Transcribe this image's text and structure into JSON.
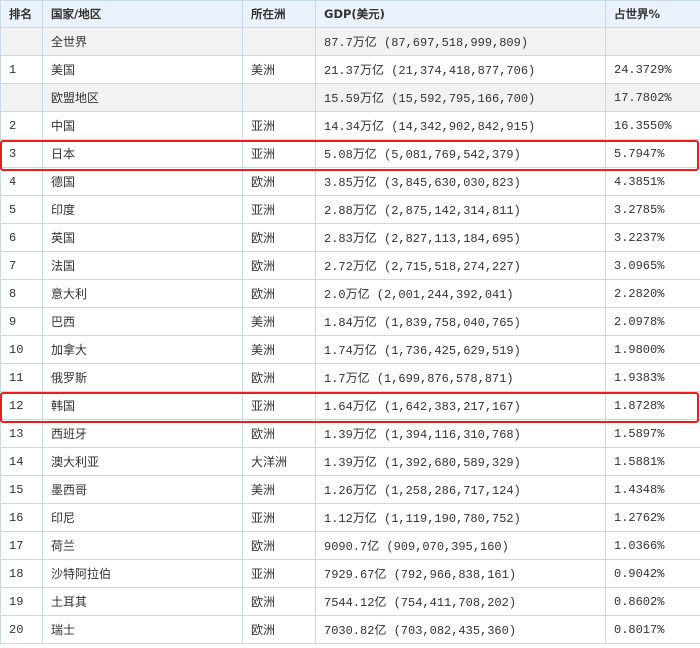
{
  "headers": [
    "排名",
    "国家/地区",
    "所在洲",
    "GDP(美元)",
    "占世界%"
  ],
  "rows": [
    {
      "rank": "",
      "country": "全世界",
      "continent": "",
      "gdp": "87.7万亿 (87,697,518,999,809)",
      "share": "",
      "gray": true
    },
    {
      "rank": "1",
      "country": "美国",
      "continent": "美洲",
      "gdp": "21.37万亿 (21,374,418,877,706)",
      "share": "24.3729%"
    },
    {
      "rank": "",
      "country": "欧盟地区",
      "continent": "",
      "gdp": "15.59万亿 (15,592,795,166,700)",
      "share": "17.7802%",
      "gray": true
    },
    {
      "rank": "2",
      "country": "中国",
      "continent": "亚洲",
      "gdp": "14.34万亿 (14,342,902,842,915)",
      "share": "16.3550%"
    },
    {
      "rank": "3",
      "country": "日本",
      "continent": "亚洲",
      "gdp": "5.08万亿 (5,081,769,542,379)",
      "share": "5.7947%",
      "highlighted": true
    },
    {
      "rank": "4",
      "country": "德国",
      "continent": "欧洲",
      "gdp": "3.85万亿 (3,845,630,030,823)",
      "share": "4.3851%"
    },
    {
      "rank": "5",
      "country": "印度",
      "continent": "亚洲",
      "gdp": "2.88万亿 (2,875,142,314,811)",
      "share": "3.2785%"
    },
    {
      "rank": "6",
      "country": "英国",
      "continent": "欧洲",
      "gdp": "2.83万亿 (2,827,113,184,695)",
      "share": "3.2237%"
    },
    {
      "rank": "7",
      "country": "法国",
      "continent": "欧洲",
      "gdp": "2.72万亿 (2,715,518,274,227)",
      "share": "3.0965%"
    },
    {
      "rank": "8",
      "country": "意大利",
      "continent": "欧洲",
      "gdp": "2.0万亿 (2,001,244,392,041)",
      "share": "2.2820%"
    },
    {
      "rank": "9",
      "country": "巴西",
      "continent": "美洲",
      "gdp": "1.84万亿 (1,839,758,040,765)",
      "share": "2.0978%"
    },
    {
      "rank": "10",
      "country": "加拿大",
      "continent": "美洲",
      "gdp": "1.74万亿 (1,736,425,629,519)",
      "share": "1.9800%"
    },
    {
      "rank": "11",
      "country": "俄罗斯",
      "continent": "欧洲",
      "gdp": "1.7万亿 (1,699,876,578,871)",
      "share": "1.9383%"
    },
    {
      "rank": "12",
      "country": "韩国",
      "continent": "亚洲",
      "gdp": "1.64万亿 (1,642,383,217,167)",
      "share": "1.8728%",
      "highlighted": true
    },
    {
      "rank": "13",
      "country": "西班牙",
      "continent": "欧洲",
      "gdp": "1.39万亿 (1,394,116,310,768)",
      "share": "1.5897%"
    },
    {
      "rank": "14",
      "country": "澳大利亚",
      "continent": "大洋洲",
      "gdp": "1.39万亿 (1,392,680,589,329)",
      "share": "1.5881%"
    },
    {
      "rank": "15",
      "country": "墨西哥",
      "continent": "美洲",
      "gdp": "1.26万亿 (1,258,286,717,124)",
      "share": "1.4348%"
    },
    {
      "rank": "16",
      "country": "印尼",
      "continent": "亚洲",
      "gdp": "1.12万亿 (1,119,190,780,752)",
      "share": "1.2762%"
    },
    {
      "rank": "17",
      "country": "荷兰",
      "continent": "欧洲",
      "gdp": "9090.7亿 (909,070,395,160)",
      "share": "1.0366%"
    },
    {
      "rank": "18",
      "country": "沙特阿拉伯",
      "continent": "亚洲",
      "gdp": "7929.67亿 (792,966,838,161)",
      "share": "0.9042%"
    },
    {
      "rank": "19",
      "country": "土耳其",
      "continent": "欧洲",
      "gdp": "7544.12亿 (754,411,708,202)",
      "share": "0.8602%"
    },
    {
      "rank": "20",
      "country": "瑞士",
      "continent": "欧洲",
      "gdp": "7030.82亿 (703,082,435,360)",
      "share": "0.8017%"
    }
  ],
  "colors": {
    "header_bg": "#eaf3fb",
    "gray_row_bg": "#f2f2f2",
    "border": "#c9d9ea",
    "highlight": "#ee1c1c"
  }
}
